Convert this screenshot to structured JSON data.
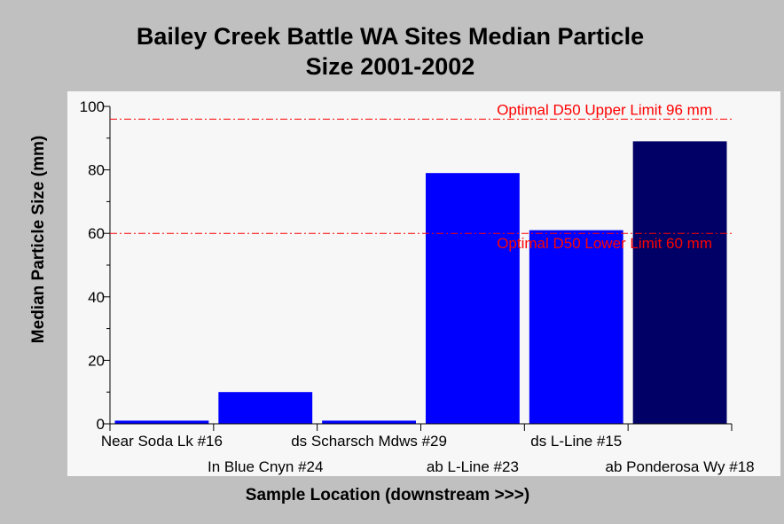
{
  "chart_data": {
    "type": "bar",
    "title": "Bailey Creek Battle WA Sites Median Particle\nSize 2001-2002",
    "xlabel": "Sample Location (downstream >>>)",
    "ylabel": "Median Particle Size (mm)",
    "ylim": [
      0,
      100
    ],
    "yticks": [
      "0",
      "20",
      "40",
      "60",
      "80",
      "100"
    ],
    "categories": [
      "Near Soda Lk #16",
      "In Blue Cnyn #24",
      "ds Scharsch Mdws #29",
      "ab L-Line #23",
      "ds L-Line #15",
      "ab Ponderosa Wy #18"
    ],
    "values": [
      1,
      10,
      1,
      79,
      61,
      89
    ],
    "bar_colors": [
      "#0000ff",
      "#0000ff",
      "#0000ff",
      "#0000ff",
      "#0000ff",
      "#000066"
    ],
    "reference_lines": [
      {
        "value": 96,
        "label": "Optimal D50 Upper Limit 96 mm",
        "color": "#ff0000"
      },
      {
        "value": 60,
        "label": "Optimal D50 Lower Limit 60 mm",
        "color": "#ff0000"
      }
    ],
    "grid": false,
    "legend": "none"
  }
}
